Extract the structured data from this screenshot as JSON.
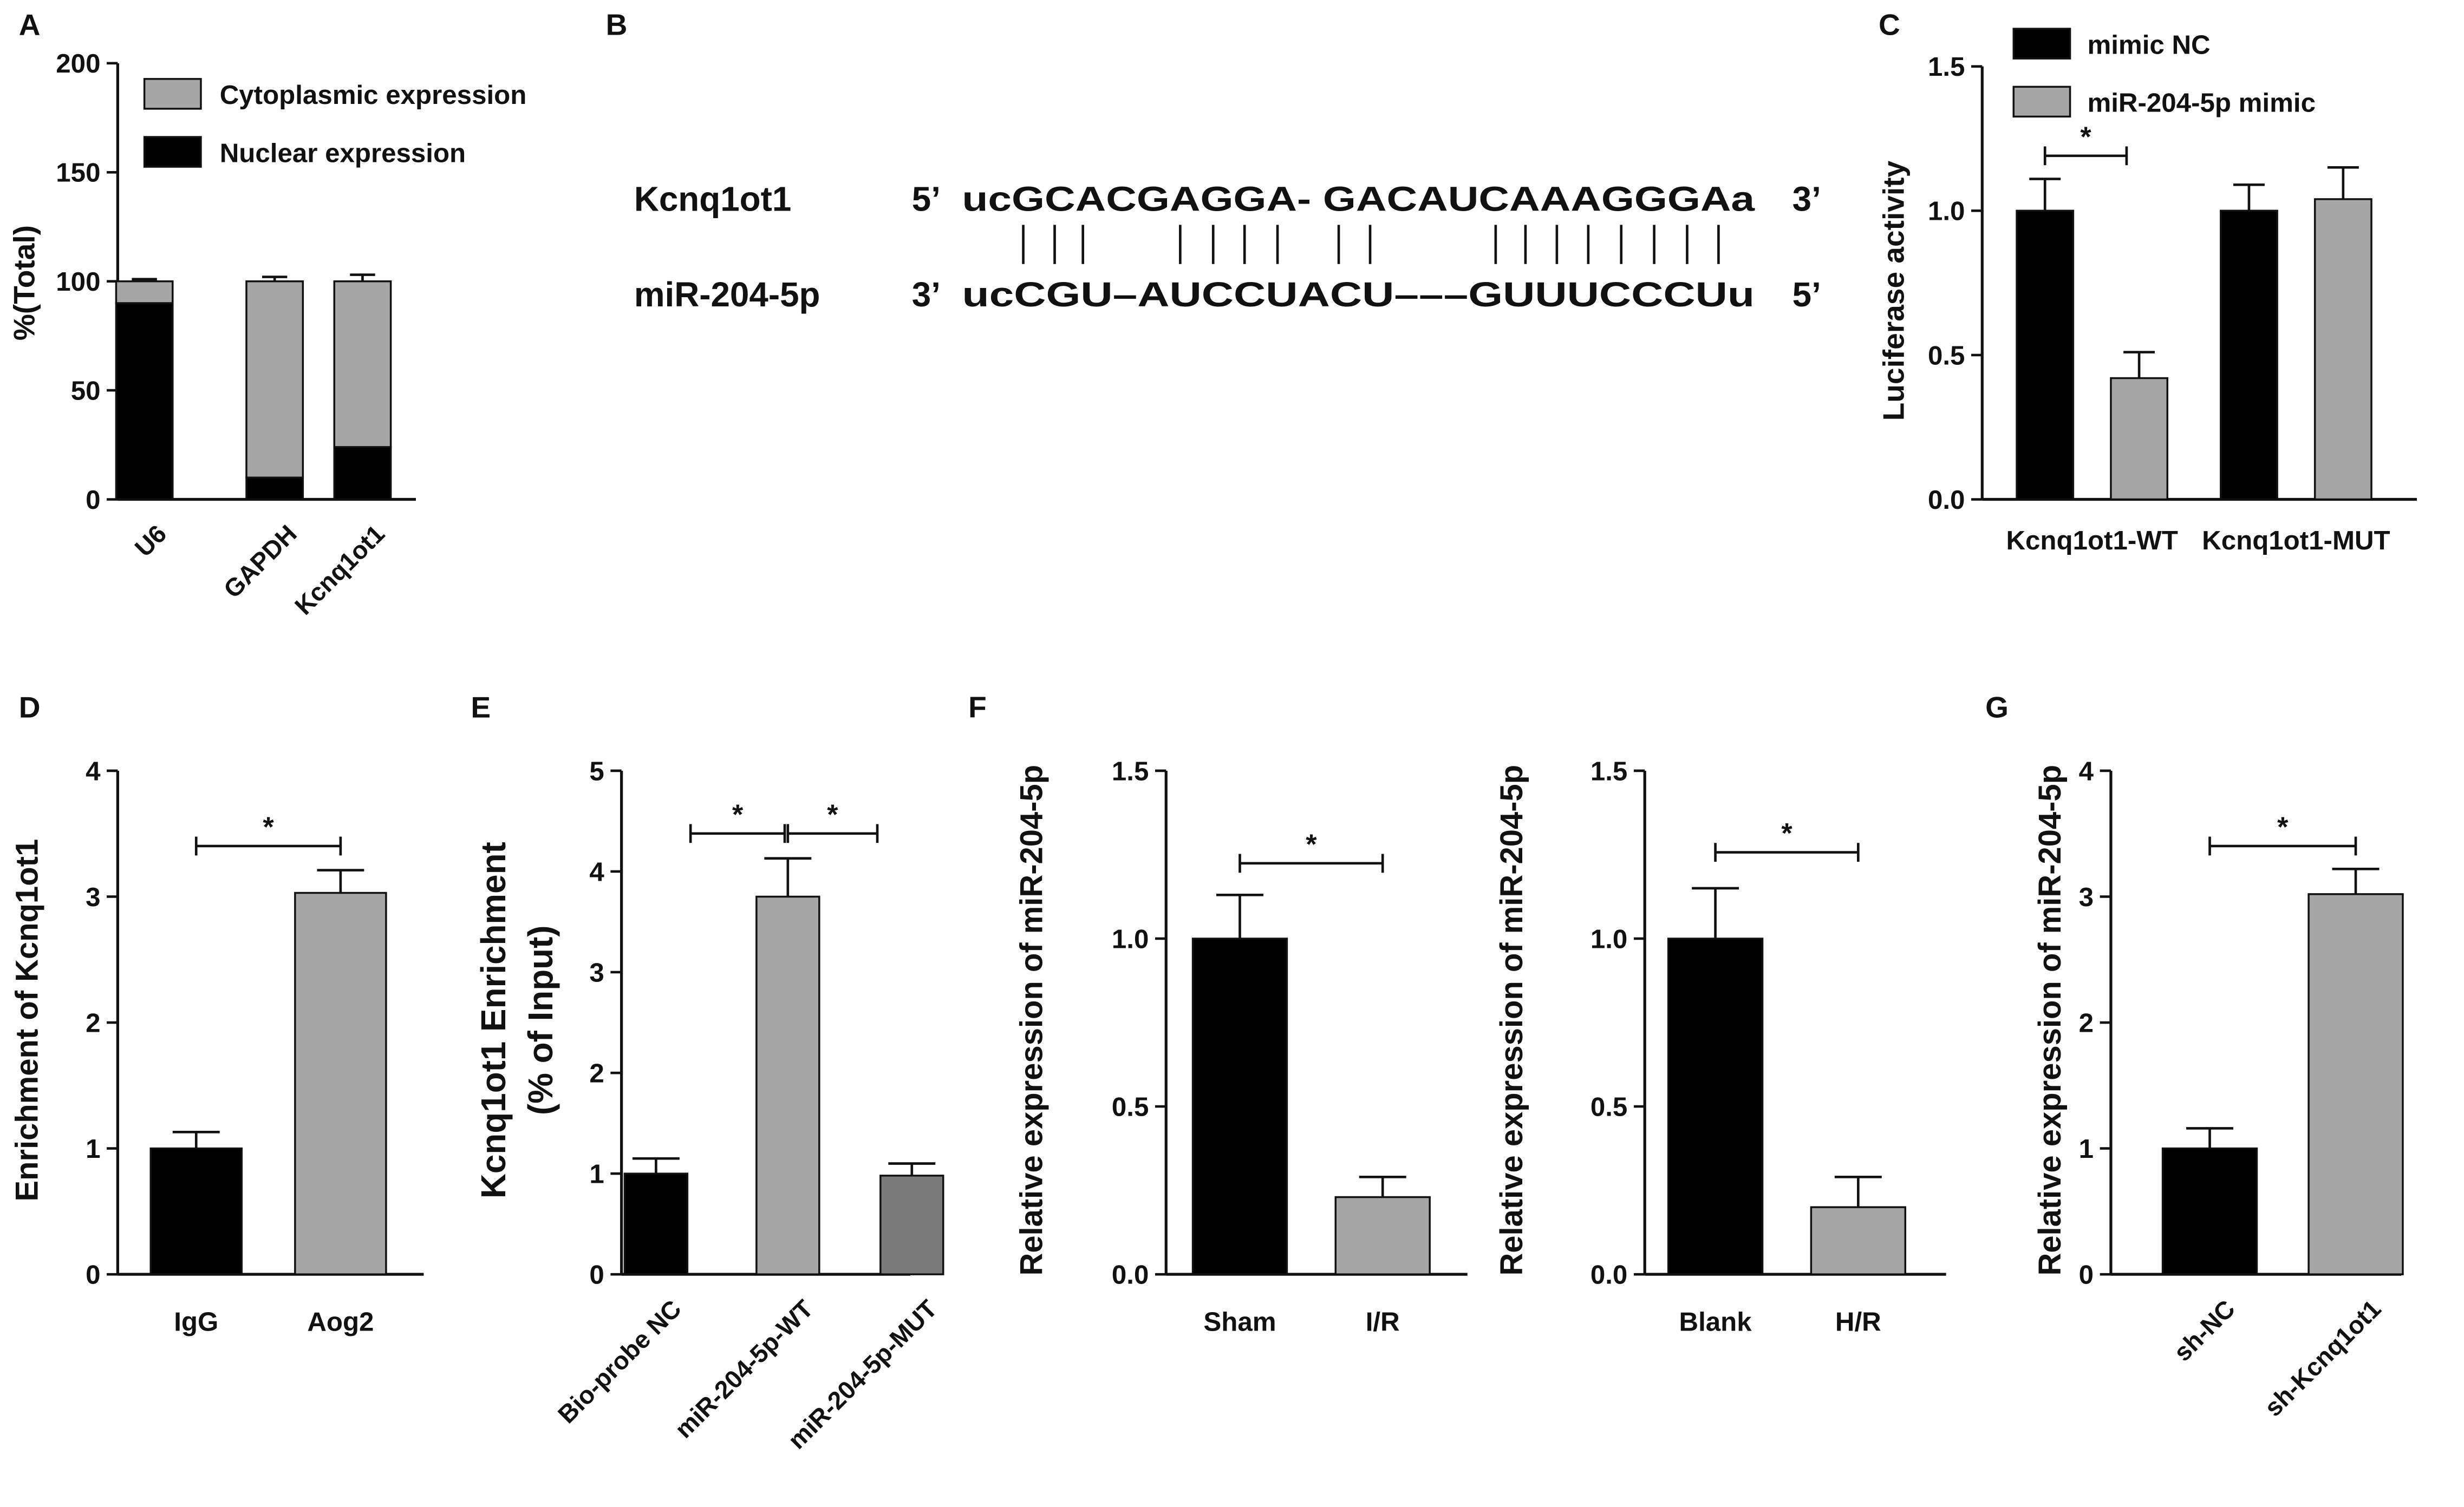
{
  "colors": {
    "black": "#000000",
    "light_gray": "#a6a6a6",
    "dark_gray": "#7a7a7a",
    "axis": "#111111"
  },
  "panels": {
    "A": "A",
    "B": "B",
    "C": "C",
    "D": "D",
    "E": "E",
    "F": "F",
    "G": "G"
  },
  "sequence": {
    "gene_name": "Kcnq1ot1",
    "gene_prime5": "5’",
    "gene_seq": "ucGCACGAGGA- GACAUCAAAGGGAa",
    "gene_prime3": "3’",
    "mirna_name": "miR-204-5p",
    "mirna_prime3": "3’",
    "mirna_seq": "ucCGU–AUCCUACU–––GUUUCCCUu",
    "mirna_prime5": "5’"
  },
  "chart_data": [
    {
      "id": "A",
      "type": "bar",
      "stacked": true,
      "categories": [
        "U6",
        "GAPDH",
        "Kcnq1ot1"
      ],
      "series": [
        {
          "name": "Nuclear expression",
          "values": [
            90,
            10,
            24
          ],
          "errors": [
            3,
            2,
            2
          ],
          "color": "#000000"
        },
        {
          "name": "Cytoplasmic expression",
          "values": [
            10,
            90,
            76
          ],
          "errors": [
            1,
            2,
            3
          ],
          "color": "#a6a6a6"
        }
      ],
      "ylabel": "%(Total)",
      "ylim": [
        0,
        200
      ],
      "yticks": [
        "0",
        "50",
        "100",
        "150",
        "200"
      ],
      "legend": "top-right",
      "grid": false
    },
    {
      "id": "C",
      "type": "bar",
      "categories": [
        "Kcnq1ot1-WT",
        "Kcnq1ot1-MUT"
      ],
      "series": [
        {
          "name": "mimic NC",
          "values": [
            1.0,
            1.0
          ],
          "errors": [
            0.11,
            0.09
          ],
          "color": "#000000"
        },
        {
          "name": "miR-204-5p mimic",
          "values": [
            0.42,
            1.04
          ],
          "errors": [
            0.09,
            0.11
          ],
          "color": "#a6a6a6"
        }
      ],
      "ylabel": "Luciferase activity",
      "ylim": [
        0,
        1.5
      ],
      "yticks": [
        "0.0",
        "0.5",
        "1.0",
        "1.5"
      ],
      "significance": [
        "*"
      ],
      "legend": "top",
      "grid": false
    },
    {
      "id": "D",
      "type": "bar",
      "categories": [
        "IgG",
        "Aog2"
      ],
      "values": [
        1.0,
        3.03
      ],
      "errors": [
        0.13,
        0.18
      ],
      "colors": [
        "#000000",
        "#a6a6a6"
      ],
      "ylabel": "Enrichment of Kcnq1ot1",
      "ylim": [
        0,
        4
      ],
      "yticks": [
        "0",
        "1",
        "2",
        "3",
        "4"
      ],
      "significance": [
        "*"
      ],
      "grid": false
    },
    {
      "id": "E",
      "type": "bar",
      "categories": [
        "Bio-probe NC",
        "miR-204-5p-WT",
        "miR-204-5p-MUT"
      ],
      "values": [
        1.0,
        3.75,
        0.98
      ],
      "errors": [
        0.15,
        0.38,
        0.12
      ],
      "colors": [
        "#000000",
        "#a6a6a6",
        "#7a7a7a"
      ],
      "ylabel_line1": "Kcnq1ot1 Enrichment",
      "ylabel_line2": "(% of Input)",
      "ylim": [
        0,
        5
      ],
      "yticks": [
        "0",
        "1",
        "2",
        "3",
        "4",
        "5"
      ],
      "significance": [
        "*",
        "*"
      ],
      "grid": false
    },
    {
      "id": "F1",
      "type": "bar",
      "categories": [
        "Sham",
        "I/R"
      ],
      "values": [
        1.0,
        0.23
      ],
      "errors": [
        0.13,
        0.06
      ],
      "colors": [
        "#000000",
        "#a6a6a6"
      ],
      "ylabel": "Relative expression of miR-204-5p",
      "ylim": [
        0,
        1.5
      ],
      "yticks": [
        "0.0",
        "0.5",
        "1.0",
        "1.5"
      ],
      "significance": [
        "*"
      ],
      "grid": false
    },
    {
      "id": "F2",
      "type": "bar",
      "categories": [
        "Blank",
        "H/R"
      ],
      "values": [
        1.0,
        0.2
      ],
      "errors": [
        0.15,
        0.09
      ],
      "colors": [
        "#000000",
        "#a6a6a6"
      ],
      "ylabel": "Relative expression of miR-204-5p",
      "ylim": [
        0,
        1.5
      ],
      "yticks": [
        "0.0",
        "0.5",
        "1.0",
        "1.5"
      ],
      "significance": [
        "*"
      ],
      "grid": false
    },
    {
      "id": "G",
      "type": "bar",
      "categories": [
        "sh-NC",
        "sh-Kcnq1ot1"
      ],
      "values": [
        1.0,
        3.02
      ],
      "errors": [
        0.16,
        0.2
      ],
      "colors": [
        "#000000",
        "#a6a6a6"
      ],
      "ylabel": "Relative expression of miR-204-5p",
      "ylim": [
        0,
        4
      ],
      "yticks": [
        "0",
        "1",
        "2",
        "3",
        "4"
      ],
      "significance": [
        "*"
      ],
      "grid": false
    }
  ]
}
